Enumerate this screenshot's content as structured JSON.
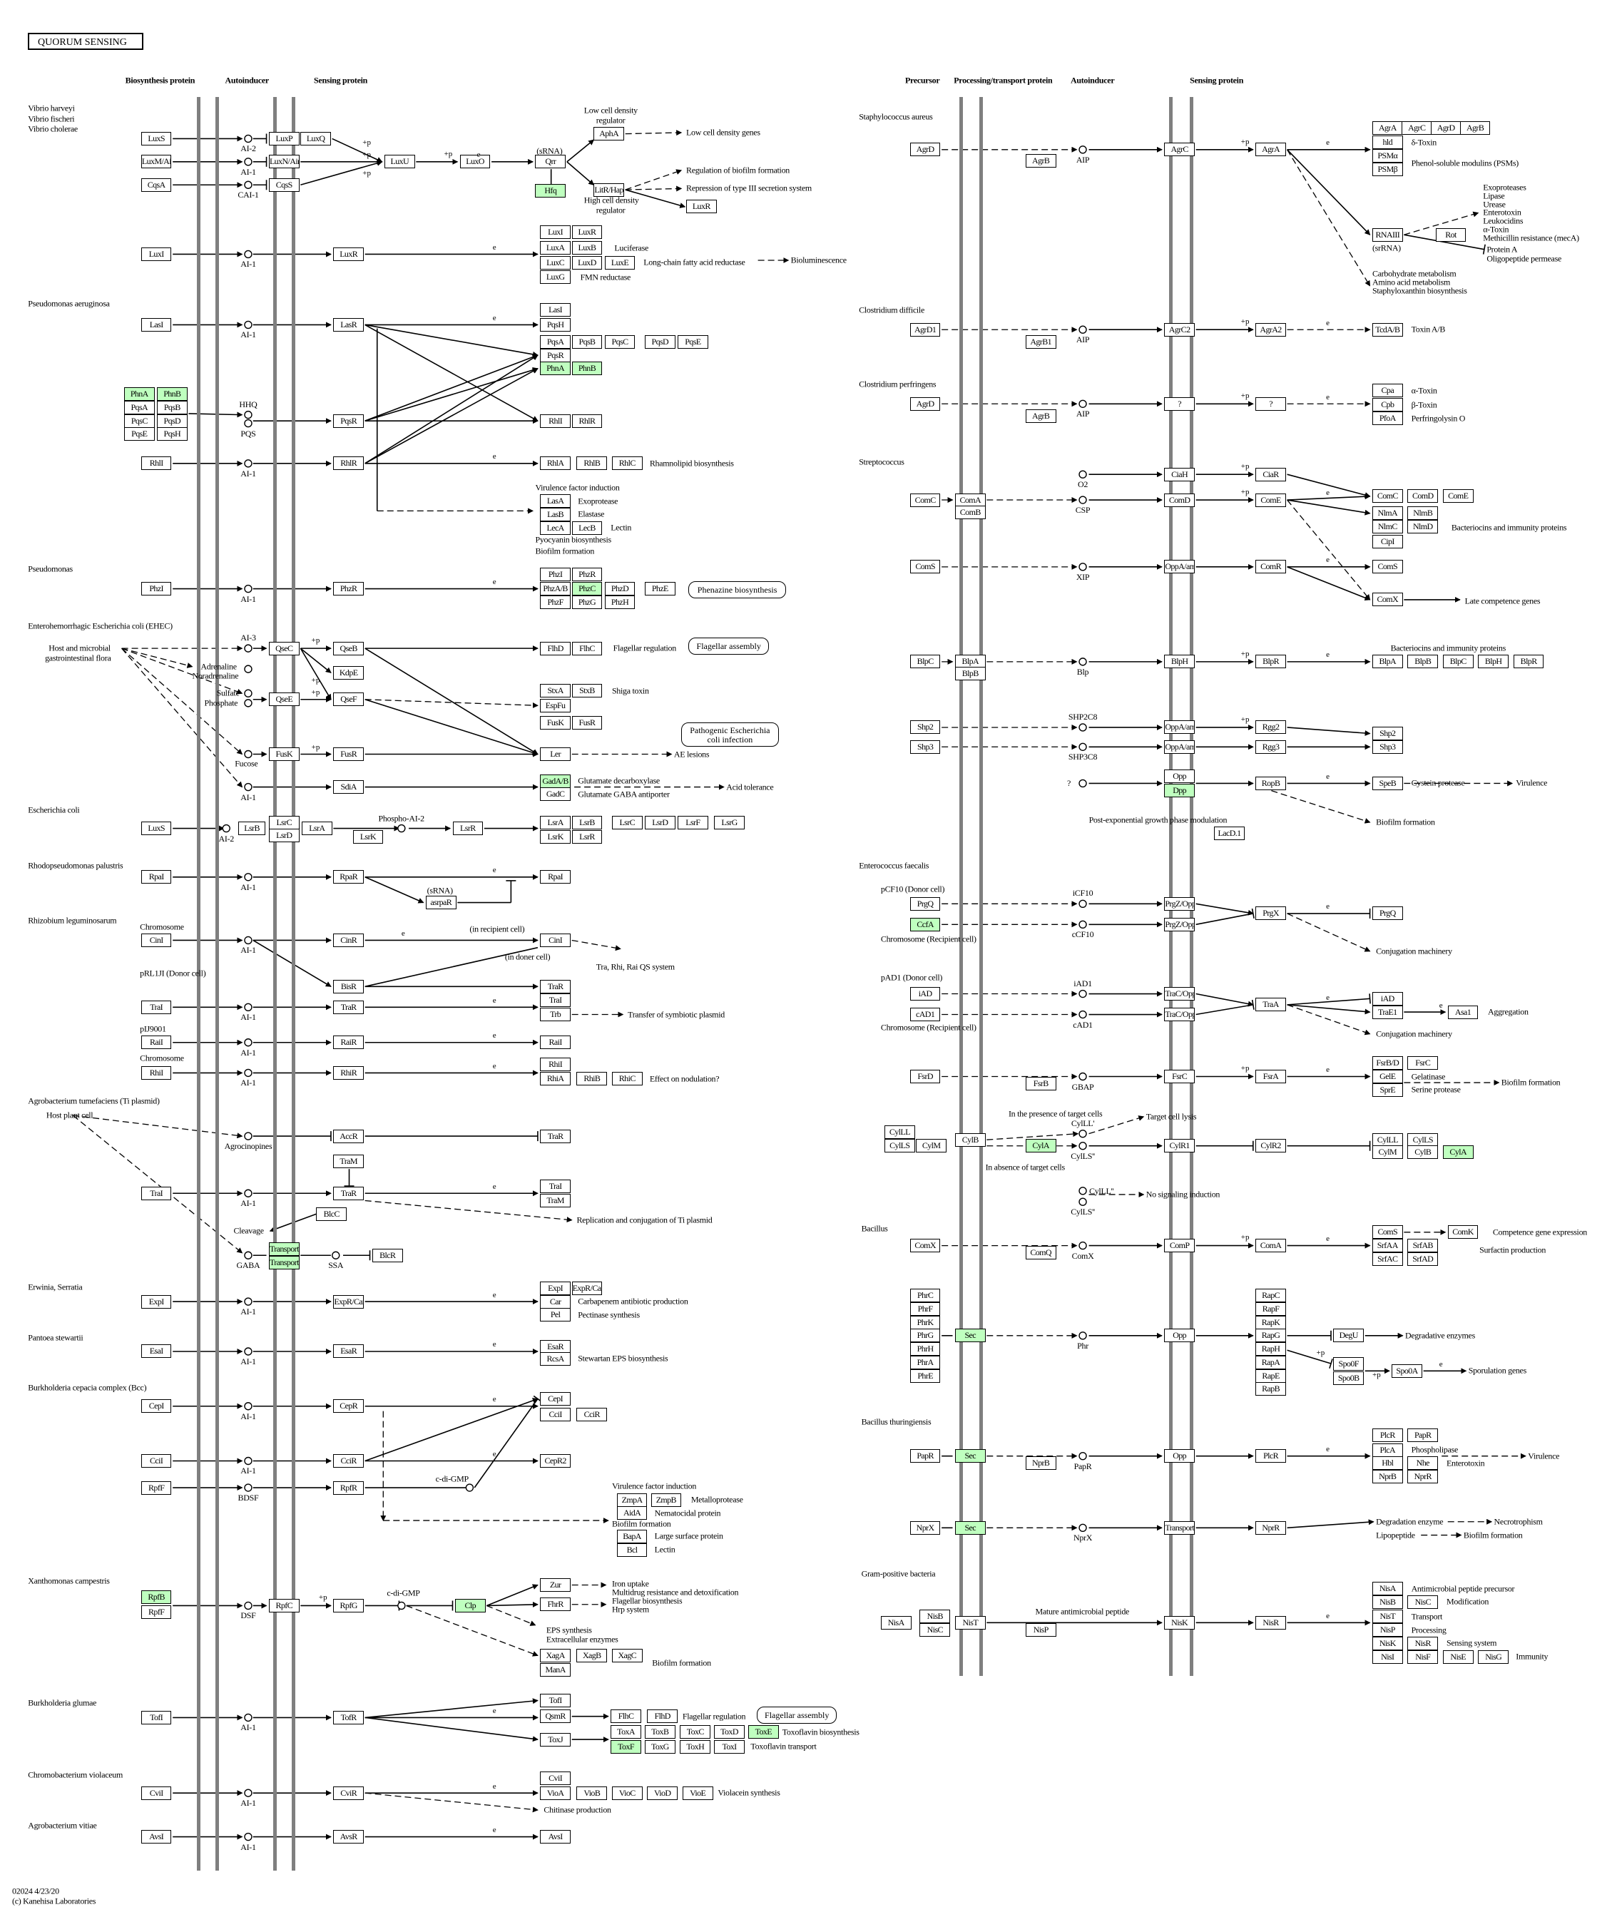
{
  "title": "QUORUM SENSING",
  "colors": {
    "highlight": "#bfffbf",
    "membrane": "#7f7f7f",
    "line": "#000000"
  },
  "edge_labels": {
    "expression": "e",
    "phosphorylation": "+p"
  },
  "genes": [
    {
      "label": "LuxS"
    },
    {
      "label": "LuxM/AinS"
    },
    {
      "label": "CqsA"
    },
    {
      "label": "LuxP"
    },
    {
      "label": "LuxQ"
    },
    {
      "label": "LuxN/AinR"
    },
    {
      "label": "CqsS"
    },
    {
      "label": "LuxU"
    },
    {
      "label": "LuxO"
    },
    {
      "label": "Qrr"
    },
    {
      "label": "Hfq",
      "highlighted": true
    },
    {
      "label": "AphA"
    },
    {
      "label": "LitR/HapR"
    },
    {
      "label": "LuxR"
    },
    {
      "label": "LuxI"
    },
    {
      "label": "LuxR"
    },
    {
      "label": "LuxI"
    },
    {
      "label": "LuxR"
    },
    {
      "label": "LuxA"
    },
    {
      "label": "LuxB"
    },
    {
      "label": "LuxC"
    },
    {
      "label": "LuxD"
    },
    {
      "label": "LuxE"
    },
    {
      "label": "LuxG"
    },
    {
      "label": "LasI"
    },
    {
      "label": "LasR"
    },
    {
      "label": "LasI"
    },
    {
      "label": "PqsH"
    },
    {
      "label": "PqsA"
    },
    {
      "label": "PqsB"
    },
    {
      "label": "PqsC"
    },
    {
      "label": "PqsD"
    },
    {
      "label": "PqsE"
    },
    {
      "label": "PqsR"
    },
    {
      "label": "PhnA",
      "highlighted": true
    },
    {
      "label": "PhnB",
      "highlighted": true
    },
    {
      "label": "PhnA",
      "highlighted": true
    },
    {
      "label": "PhnB",
      "highlighted": true
    },
    {
      "label": "PqsA"
    },
    {
      "label": "PqsB"
    },
    {
      "label": "PqsC"
    },
    {
      "label": "PqsD"
    },
    {
      "label": "PqsE"
    },
    {
      "label": "PqsH"
    },
    {
      "label": "PqsR"
    },
    {
      "label": "RhlI"
    },
    {
      "label": "RhlR"
    },
    {
      "label": "RhlI"
    },
    {
      "label": "RhlR"
    },
    {
      "label": "RhlA"
    },
    {
      "label": "RhlB"
    },
    {
      "label": "RhlC"
    },
    {
      "label": "LasA"
    },
    {
      "label": "LasB"
    },
    {
      "label": "LecA"
    },
    {
      "label": "LecB"
    },
    {
      "label": "PhzI"
    },
    {
      "label": "PhzR"
    },
    {
      "label": "PhzI"
    },
    {
      "label": "PhzR"
    },
    {
      "label": "PhzA/B"
    },
    {
      "label": "PhzC",
      "highlighted": true
    },
    {
      "label": "PhzD"
    },
    {
      "label": "PhzE"
    },
    {
      "label": "PhzF"
    },
    {
      "label": "PhzG"
    },
    {
      "label": "PhzH"
    },
    {
      "label": "QseC"
    },
    {
      "label": "QseB"
    },
    {
      "label": "FlhD"
    },
    {
      "label": "FlhC"
    },
    {
      "label": "KdpE"
    },
    {
      "label": "QseE"
    },
    {
      "label": "QseF"
    },
    {
      "label": "StxA"
    },
    {
      "label": "StxB"
    },
    {
      "label": "EspFu"
    },
    {
      "label": "FusK"
    },
    {
      "label": "FusR"
    },
    {
      "label": "Ler"
    },
    {
      "label": "FusK"
    },
    {
      "label": "FusR"
    },
    {
      "label": "SdiA"
    },
    {
      "label": "GadA/B",
      "highlighted": true
    },
    {
      "label": "GadC"
    },
    {
      "label": "LuxS"
    },
    {
      "label": "LsrB"
    },
    {
      "label": "LsrC"
    },
    {
      "label": "LsrD"
    },
    {
      "label": "LsrA"
    },
    {
      "label": "LsrK"
    },
    {
      "label": "LsrR"
    },
    {
      "label": "LsrA"
    },
    {
      "label": "LsrB"
    },
    {
      "label": "LsrC"
    },
    {
      "label": "LsrD"
    },
    {
      "label": "LsrF"
    },
    {
      "label": "LsrG"
    },
    {
      "label": "LsrK"
    },
    {
      "label": "LsrR"
    },
    {
      "label": "RpaI"
    },
    {
      "label": "RpaR"
    },
    {
      "label": "asrpaR"
    },
    {
      "label": "RpaI"
    },
    {
      "label": "CinI"
    },
    {
      "label": "CinR"
    },
    {
      "label": "CinI"
    },
    {
      "label": "BisR"
    },
    {
      "label": "TraR"
    },
    {
      "label": "TraI"
    },
    {
      "label": "TraR"
    },
    {
      "label": "TraI"
    },
    {
      "label": "Trb"
    },
    {
      "label": "RaiI"
    },
    {
      "label": "RaiR"
    },
    {
      "label": "RaiI"
    },
    {
      "label": "RhiI"
    },
    {
      "label": "RhiR"
    },
    {
      "label": "RhiI"
    },
    {
      "label": "RhiA"
    },
    {
      "label": "RhiB"
    },
    {
      "label": "RhiC"
    },
    {
      "label": "AccR"
    },
    {
      "label": "TraR"
    },
    {
      "label": "TraM"
    },
    {
      "label": "TraI"
    },
    {
      "label": "TraR"
    },
    {
      "label": "TraI"
    },
    {
      "label": "TraM"
    },
    {
      "label": "BlcC"
    },
    {
      "label": "Transporter",
      "highlighted": true
    },
    {
      "label": "Transporter",
      "highlighted": true
    },
    {
      "label": "BlcR"
    },
    {
      "label": "ExpI"
    },
    {
      "label": "ExpR/CarR"
    },
    {
      "label": "ExpI"
    },
    {
      "label": "ExpR/CarR"
    },
    {
      "label": "Car"
    },
    {
      "label": "Pel"
    },
    {
      "label": "EsaI"
    },
    {
      "label": "EsaR"
    },
    {
      "label": "EsaR"
    },
    {
      "label": "RcsA"
    },
    {
      "label": "CepI"
    },
    {
      "label": "CepR"
    },
    {
      "label": "CepI"
    },
    {
      "label": "CciI"
    },
    {
      "label": "CciR"
    },
    {
      "label": "CciI"
    },
    {
      "label": "CciR"
    },
    {
      "label": "CepR2"
    },
    {
      "label": "RpfF"
    },
    {
      "label": "RpfR"
    },
    {
      "label": "ZmpA"
    },
    {
      "label": "ZmpB"
    },
    {
      "label": "AidA"
    },
    {
      "label": "BapA"
    },
    {
      "label": "Bcl"
    },
    {
      "label": "RpfB",
      "highlighted": true
    },
    {
      "label": "RpfF"
    },
    {
      "label": "RpfC"
    },
    {
      "label": "RpfG"
    },
    {
      "label": "Clp",
      "highlighted": true
    },
    {
      "label": "Zur"
    },
    {
      "label": "FhrR"
    },
    {
      "label": "XagA"
    },
    {
      "label": "XagB"
    },
    {
      "label": "XagC"
    },
    {
      "label": "ManA"
    },
    {
      "label": "TofI"
    },
    {
      "label": "TofR"
    },
    {
      "label": "TofI"
    },
    {
      "label": "QsmR"
    },
    {
      "label": "FlhC"
    },
    {
      "label": "FlhD"
    },
    {
      "label": "ToxJ"
    },
    {
      "label": "ToxA"
    },
    {
      "label": "ToxB"
    },
    {
      "label": "ToxC"
    },
    {
      "label": "ToxD"
    },
    {
      "label": "ToxE",
      "highlighted": true
    },
    {
      "label": "ToxF",
      "highlighted": true
    },
    {
      "label": "ToxG"
    },
    {
      "label": "ToxH"
    },
    {
      "label": "ToxI"
    },
    {
      "label": "CviI"
    },
    {
      "label": "CviR"
    },
    {
      "label": "CviI"
    },
    {
      "label": "VioA"
    },
    {
      "label": "VioB"
    },
    {
      "label": "VioC"
    },
    {
      "label": "VioD"
    },
    {
      "label": "VioE"
    },
    {
      "label": "AvsI"
    },
    {
      "label": "AvsR"
    },
    {
      "label": "AvsI"
    },
    {
      "label": "AgrD"
    },
    {
      "label": "AgrB"
    },
    {
      "label": "AgrC"
    },
    {
      "label": "AgrA"
    },
    {
      "label": "AgrA"
    },
    {
      "label": "AgrC"
    },
    {
      "label": "AgrD"
    },
    {
      "label": "AgrB"
    },
    {
      "label": "hld"
    },
    {
      "label": "PSMα"
    },
    {
      "label": "PSMβ"
    },
    {
      "label": "RNAIII"
    },
    {
      "label": "Rot"
    },
    {
      "label": "AgrD1"
    },
    {
      "label": "AgrB1"
    },
    {
      "label": "AgrC2"
    },
    {
      "label": "AgrA2"
    },
    {
      "label": "TcdA/B"
    },
    {
      "label": "AgrD"
    },
    {
      "label": "AgrB"
    },
    {
      "label": "?"
    },
    {
      "label": "?"
    },
    {
      "label": "Cpa"
    },
    {
      "label": "Cpb"
    },
    {
      "label": "PfoA"
    },
    {
      "label": "CiaH"
    },
    {
      "label": "CiaR"
    },
    {
      "label": "ComC"
    },
    {
      "label": "ComA"
    },
    {
      "label": "ComB"
    },
    {
      "label": "ComD"
    },
    {
      "label": "ComE"
    },
    {
      "label": "ComC"
    },
    {
      "label": "ComD"
    },
    {
      "label": "ComE"
    },
    {
      "label": "NlmA"
    },
    {
      "label": "NlmB"
    },
    {
      "label": "NlmC"
    },
    {
      "label": "NlmD"
    },
    {
      "label": "CipI"
    },
    {
      "label": "ComS"
    },
    {
      "label": "OppA/ami"
    },
    {
      "label": "ComR"
    },
    {
      "label": "ComS"
    },
    {
      "label": "ComX"
    },
    {
      "label": "BlpC"
    },
    {
      "label": "BlpA"
    },
    {
      "label": "BlpB"
    },
    {
      "label": "BlpH"
    },
    {
      "label": "BlpR"
    },
    {
      "label": "BlpA"
    },
    {
      "label": "BlpB"
    },
    {
      "label": "BlpC"
    },
    {
      "label": "BlpH"
    },
    {
      "label": "BlpR"
    },
    {
      "label": "Shp2"
    },
    {
      "label": "OppA/ami"
    },
    {
      "label": "Rgg2"
    },
    {
      "label": "Shp2"
    },
    {
      "label": "Shp3"
    },
    {
      "label": "OppA/ami"
    },
    {
      "label": "Rgg3"
    },
    {
      "label": "Shp3"
    },
    {
      "label": "Opp"
    },
    {
      "label": "Dpp",
      "highlighted": true
    },
    {
      "label": "RopB"
    },
    {
      "label": "SpeB"
    },
    {
      "label": "LacD.1"
    },
    {
      "label": "PrgQ"
    },
    {
      "label": "CcfA",
      "highlighted": true
    },
    {
      "label": "PrgZ/Opp"
    },
    {
      "label": "PrgZ/Opp"
    },
    {
      "label": "PrgX"
    },
    {
      "label": "PrgQ"
    },
    {
      "label": "iAD"
    },
    {
      "label": "cAD1"
    },
    {
      "label": "TraC/Opp"
    },
    {
      "label": "TraC/Opp"
    },
    {
      "label": "TraA"
    },
    {
      "label": "iAD"
    },
    {
      "label": "TraE1"
    },
    {
      "label": "Asa1"
    },
    {
      "label": "FsrD"
    },
    {
      "label": "FsrB"
    },
    {
      "label": "FsrC"
    },
    {
      "label": "FsrA"
    },
    {
      "label": "FsrB/D"
    },
    {
      "label": "FsrC"
    },
    {
      "label": "GelE"
    },
    {
      "label": "SprE"
    },
    {
      "label": "CylLL"
    },
    {
      "label": "CylLS"
    },
    {
      "label": "CylM"
    },
    {
      "label": "CylB"
    },
    {
      "label": "CylA",
      "highlighted": true
    },
    {
      "label": "CylR1"
    },
    {
      "label": "CylR2"
    },
    {
      "label": "CylLL"
    },
    {
      "label": "CylLS"
    },
    {
      "label": "CylM"
    },
    {
      "label": "CylB"
    },
    {
      "label": "CylA",
      "highlighted": true
    },
    {
      "label": "ComX"
    },
    {
      "label": "ComQ"
    },
    {
      "label": "ComP"
    },
    {
      "label": "ComA"
    },
    {
      "label": "ComS"
    },
    {
      "label": "ComK"
    },
    {
      "label": "SrfAA"
    },
    {
      "label": "SrfAB"
    },
    {
      "label": "SrfAC"
    },
    {
      "label": "SrfAD"
    },
    {
      "label": "PhrC"
    },
    {
      "label": "PhrF"
    },
    {
      "label": "PhrK"
    },
    {
      "label": "PhrG"
    },
    {
      "label": "PhrH"
    },
    {
      "label": "PhrA"
    },
    {
      "label": "PhrE"
    },
    {
      "label": "Sec",
      "highlighted": true
    },
    {
      "label": "Opp"
    },
    {
      "label": "RapC"
    },
    {
      "label": "RapF"
    },
    {
      "label": "RapK"
    },
    {
      "label": "RapG"
    },
    {
      "label": "RapH"
    },
    {
      "label": "RapA"
    },
    {
      "label": "RapE"
    },
    {
      "label": "RapB"
    },
    {
      "label": "DegU"
    },
    {
      "label": "Spo0F"
    },
    {
      "label": "Spo0B"
    },
    {
      "label": "Spo0A"
    },
    {
      "label": "PapR"
    },
    {
      "label": "Sec",
      "highlighted": true
    },
    {
      "label": "NprB"
    },
    {
      "label": "Opp"
    },
    {
      "label": "PlcR"
    },
    {
      "label": "PlcR"
    },
    {
      "label": "PapR"
    },
    {
      "label": "PlcA"
    },
    {
      "label": "Hbl"
    },
    {
      "label": "Nhe"
    },
    {
      "label": "NprB"
    },
    {
      "label": "NprR"
    },
    {
      "label": "NprX"
    },
    {
      "label": "Sec",
      "highlighted": true
    },
    {
      "label": "Transporter"
    },
    {
      "label": "NprR"
    },
    {
      "label": "NisA"
    },
    {
      "label": "NisB"
    },
    {
      "label": "NisC"
    },
    {
      "label": "NisT"
    },
    {
      "label": "NisP"
    },
    {
      "label": "NisK"
    },
    {
      "label": "NisR"
    },
    {
      "label": "NisA"
    },
    {
      "label": "NisB"
    },
    {
      "label": "NisC"
    },
    {
      "label": "NisT"
    },
    {
      "label": "NisP"
    },
    {
      "label": "NisK"
    },
    {
      "label": "NisR"
    },
    {
      "label": "NisI"
    },
    {
      "label": "NisF"
    },
    {
      "label": "NisE"
    },
    {
      "label": "NisG"
    }
  ],
  "autoinducers": [
    "AI-2",
    "AI-1",
    "CAI-1",
    "AI-1",
    "AI-1",
    "HHQ",
    "PQS",
    "AI-1",
    "AI-1",
    "AI-3",
    "AI-1",
    "AI-2",
    "AI-1",
    "AI-1",
    "AI-1",
    "AI-1",
    "AI-1",
    "Agrocinopines",
    "AI-1",
    "GABA",
    "SSA",
    "AI-1",
    "AI-1",
    "AI-1",
    "AI-1",
    "BDSF",
    "DSF",
    "AI-1",
    "AI-1",
    "AI-1",
    "AIP",
    "AIP",
    "AIP",
    "O2",
    "CSP",
    "XIP",
    "Blp",
    "SHP2C8",
    "SHP3C8",
    "?",
    "iCF10",
    "cCF10",
    "iAD1",
    "cAD1",
    "GBAP",
    "CylLL'",
    "CylLS''",
    "CylLL''",
    "CylLS''",
    "ComX",
    "Phr",
    "PapR",
    "NprX"
  ],
  "texts": [
    "Biosynthesis protein",
    "Autoinducer",
    "Sensing protein",
    "Precursor",
    "Processing/transport protein",
    "Autoinducer",
    "Sensing protein",
    "Vibrio harveyi",
    "Vibrio fischeri",
    "Vibrio cholerae",
    "Pseudomonas aeruginosa",
    "Pseudomonas",
    "Enterohemorrhagic Escherichia coli (EHEC)",
    "Escherichia coli",
    "Rhodopseudomonas palustris",
    "Rhizobium leguminosarum",
    "Agrobacterium tumefaciens (Ti plasmid)",
    "Erwinia, Serratia",
    "Pantoea stewartii",
    "Burkholderia cepacia complex (Bcc)",
    "Xanthomonas campestris",
    "Burkholderia glumae",
    "Chromobacterium violaceum",
    "Agrobacterium vitiae",
    "Staphylococcus aureus",
    "Clostridium difficile",
    "Clostridium perfringens",
    "Streptococcus",
    "Enterococcus faecalis",
    "Bacillus",
    "Bacillus thuringiensis",
    "Gram-positive bacteria",
    "Low cell density",
    "regulator",
    "Low cell density genes",
    "(sRNA)",
    "Regulation of biofilm formation",
    "Repression of type III secretion system",
    "High cell density",
    "regulator",
    "Luciferase",
    "Long-chain fatty acid reductase",
    "FMN reductase",
    "Bioluminescence",
    "Rhamnolipid biosynthesis",
    "Virulence factor induction",
    "Exoprotease",
    "Elastase",
    "Lectin",
    "Pyocyanin biosynthesis",
    "Biofilm formation",
    "Flagellar regulation",
    "Shiga toxin",
    "AE lesions",
    "Glutamate decarboxylase",
    "Glutamate GABA antiporter",
    "Acid tolerance",
    "Host and microbial",
    "gastrointestinal flora",
    "Adrenaline",
    "Noradrenaline",
    "Sulfate",
    "Phosphate",
    "Fucose",
    "Phospho-AI-2",
    "(sRNA)",
    "Chromosome",
    "(in recipient cell)",
    "(in doner cell)",
    "Tra, Rhi, Rai QS system",
    "pRL1JI (Donor cell)",
    "Transfer of symbiotic plasmid",
    "pIJ9001",
    "Chromosome",
    "Effect on nodulation?",
    "Host plant cell",
    "Replication and conjugation of Ti plasmid",
    "Cleavage",
    "Carbapenem antibiotic production",
    "Pectinase synthesis",
    "Stewartan EPS biosynthesis",
    "c-di-GMP",
    "Virulence factor induction",
    "Metalloprotease",
    "Nematocidal protein",
    "Biofilm formation",
    "Large surface protein",
    "Lectin",
    "c-di-GMP",
    "Iron uptake",
    "Multidrug resistance and detoxification",
    "Flagellar biosynthesis",
    "Hrp system",
    "EPS synthesis",
    "Extracellular enzymes",
    "Biofilm formation",
    "Flagellar regulation",
    "Toxoflavin biosynthesis",
    "Toxoflavin transport",
    "Violacein synthesis",
    "Chitinase production",
    "δ-Toxin",
    "Phenol-soluble modulins (PSMs)",
    "(srRNA)",
    "Exoproteases",
    "Lipase",
    "Urease",
    "Enterotoxin",
    "Leukocidins",
    "α-Toxin",
    "Methicillin resistance (mecA)",
    "Protein A",
    "Oligopeptide permease",
    "Carbohydrate metabolism",
    "Amino acid metabolism",
    "Staphyloxanthin biosynthesis",
    "Toxin A/B",
    "α-Toxin",
    "β-Toxin",
    "Perfringolysin O",
    "Bacteriocins and immunity proteins",
    "Late competence genes",
    "Bacteriocins and immunity proteins",
    "Cystein protease",
    "Virulence",
    "Post-exponential growth phase modulation",
    "Biofilm formation",
    "pCF10 (Donor cell)",
    "Chromosome (Recipient cell)",
    "Conjugation machinery",
    "pAD1 (Donor cell)",
    "Chromosome (Recipient cell)",
    "Aggregation",
    "Conjugation machinery",
    "Gelatinase",
    "Serine protease",
    "Biofilm formation",
    "In the presence of target cells",
    "Target cell lysis",
    "In absence of target cells",
    "No signaling induction",
    "Competence gene expression",
    "Surfactin production",
    "Degradative enzymes",
    "Sporulation genes",
    "Phospholipase",
    "Enterotoxin",
    "Virulence",
    "Degradation enzyme",
    "Necrotrophism",
    "Lipopeptide",
    "Biofilm formation",
    "Mature antimicrobial peptide",
    "Antimicrobial peptide precursor",
    "Modification",
    "Transport",
    "Processing",
    "Sensing system",
    "Immunity",
    "02024 4/23/20",
    "(c) Kanehisa Laboratories"
  ],
  "maps": [
    "Phenazine biosynthesis",
    "Flagellar assembly",
    "Pathogenic Escherichia coli infection",
    "Flagellar assembly"
  ]
}
